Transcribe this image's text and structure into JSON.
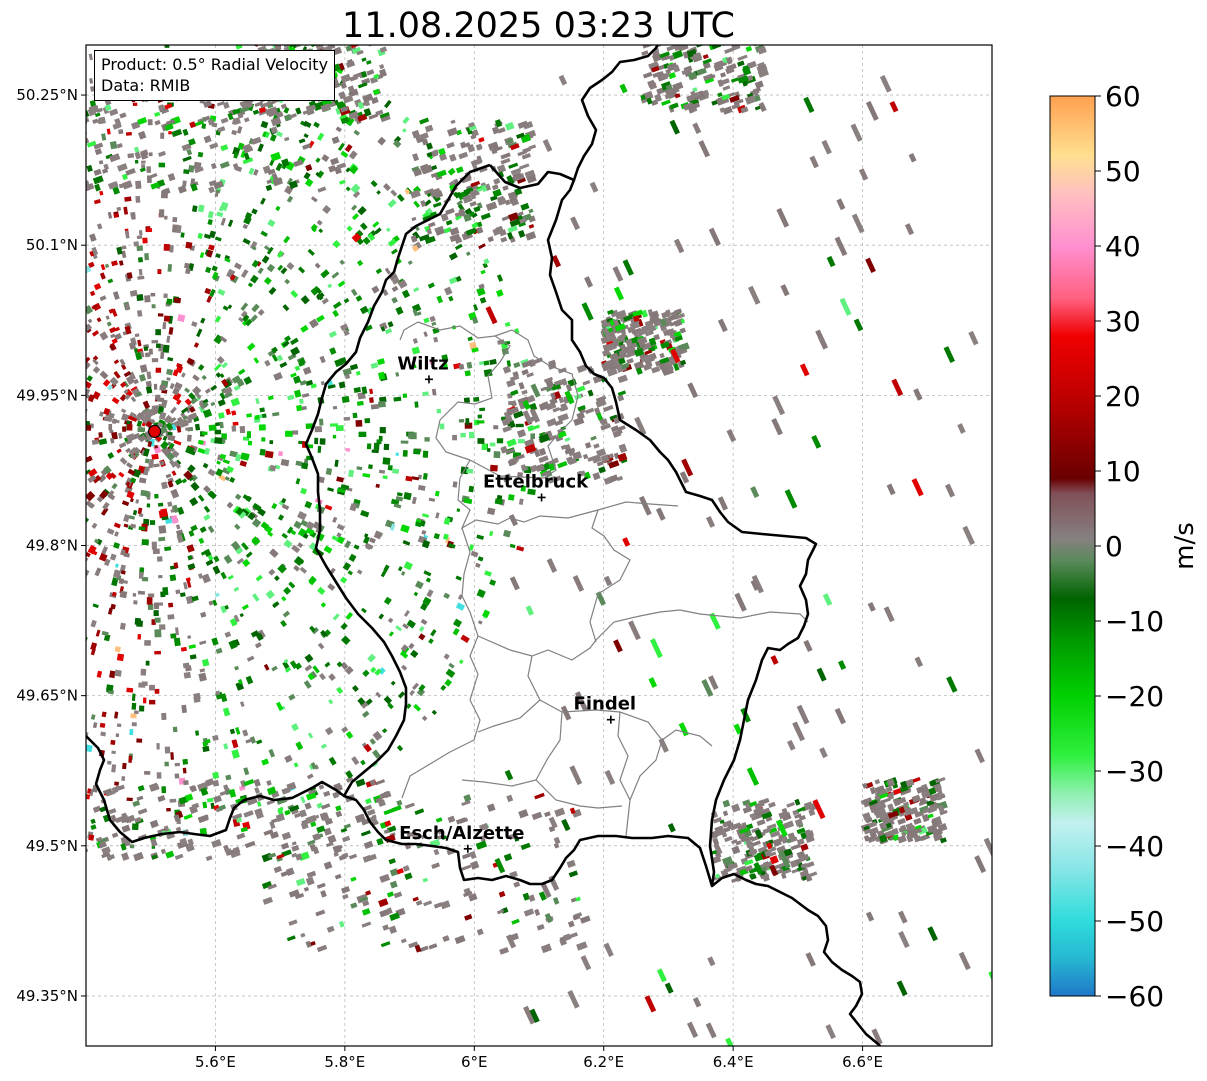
{
  "title": "11.08.2025 03:23 UTC",
  "info": {
    "product": "Product: 0.5° Radial Velocity",
    "source": "Data: RMIB"
  },
  "lat_ticks": [
    {
      "value": 50.25,
      "label": "50.25°N"
    },
    {
      "value": 50.1,
      "label": "50.1°N"
    },
    {
      "value": 49.95,
      "label": "49.95°N"
    },
    {
      "value": 49.8,
      "label": "49.8°N"
    },
    {
      "value": 49.65,
      "label": "49.65°N"
    },
    {
      "value": 49.5,
      "label": "49.5°N"
    },
    {
      "value": 49.35,
      "label": "49.35°N"
    }
  ],
  "lon_ticks": [
    {
      "value": 5.6,
      "label": "5.6°E"
    },
    {
      "value": 5.8,
      "label": "5.8°E"
    },
    {
      "value": 6.0,
      "label": "6°E"
    },
    {
      "value": 6.2,
      "label": "6.2°E"
    },
    {
      "value": 6.4,
      "label": "6.4°E"
    },
    {
      "value": 6.6,
      "label": "6.6°E"
    }
  ],
  "extent": {
    "lon_min": 5.4,
    "lon_max": 6.8,
    "lat_min": 49.3,
    "lat_max": 50.3
  },
  "cities": [
    {
      "name": "Wiltz",
      "lon": 5.93,
      "lat": 49.966
    },
    {
      "name": "Ettelbruck",
      "lon": 6.104,
      "lat": 49.848
    },
    {
      "name": "Findel",
      "lon": 6.211,
      "lat": 49.626
    },
    {
      "name": "Esch/Alzette",
      "lon": 5.99,
      "lat": 49.497
    }
  ],
  "radar": {
    "lon": 5.506,
    "lat": 49.914
  },
  "colorbar": {
    "min": -60,
    "max": 60,
    "ticks": [
      {
        "value": 60,
        "label": "60"
      },
      {
        "value": 50,
        "label": "50"
      },
      {
        "value": 40,
        "label": "40"
      },
      {
        "value": 30,
        "label": "30"
      },
      {
        "value": 20,
        "label": "20"
      },
      {
        "value": 10,
        "label": "10"
      },
      {
        "value": 0,
        "label": "0"
      },
      {
        "value": -10,
        "label": "−10"
      },
      {
        "value": -20,
        "label": "−20"
      },
      {
        "value": -30,
        "label": "−30"
      },
      {
        "value": -40,
        "label": "−40"
      },
      {
        "value": -50,
        "label": "−50"
      },
      {
        "value": -60,
        "label": "−60"
      }
    ],
    "unit": "m/s",
    "stops": [
      {
        "value": -60,
        "color": "#1f78c8"
      },
      {
        "value": -55,
        "color": "#26b8d2"
      },
      {
        "value": -50,
        "color": "#2fdcdc"
      },
      {
        "value": -43,
        "color": "#88e6e6"
      },
      {
        "value": -37,
        "color": "#c2f0f0"
      },
      {
        "value": -33,
        "color": "#8ff0b0"
      },
      {
        "value": -28,
        "color": "#30f040"
      },
      {
        "value": -20,
        "color": "#00d000"
      },
      {
        "value": -12,
        "color": "#009400"
      },
      {
        "value": -7,
        "color": "#006400"
      },
      {
        "value": -2,
        "color": "#5a8a5a"
      },
      {
        "value": 1,
        "color": "#868080"
      },
      {
        "value": 7,
        "color": "#805058"
      },
      {
        "value": 9,
        "color": "#6a0000"
      },
      {
        "value": 20,
        "color": "#c00000"
      },
      {
        "value": 28,
        "color": "#f00000"
      },
      {
        "value": 33,
        "color": "#ff6080"
      },
      {
        "value": 40,
        "color": "#ff90d0"
      },
      {
        "value": 47,
        "color": "#ffc0c0"
      },
      {
        "value": 52,
        "color": "#ffe090"
      },
      {
        "value": 60,
        "color": "#ffa050"
      }
    ]
  },
  "colors": {
    "border": "#000000",
    "canton": "#808080",
    "grid": "#bbbbbb",
    "radar_dot": "#e00000"
  }
}
